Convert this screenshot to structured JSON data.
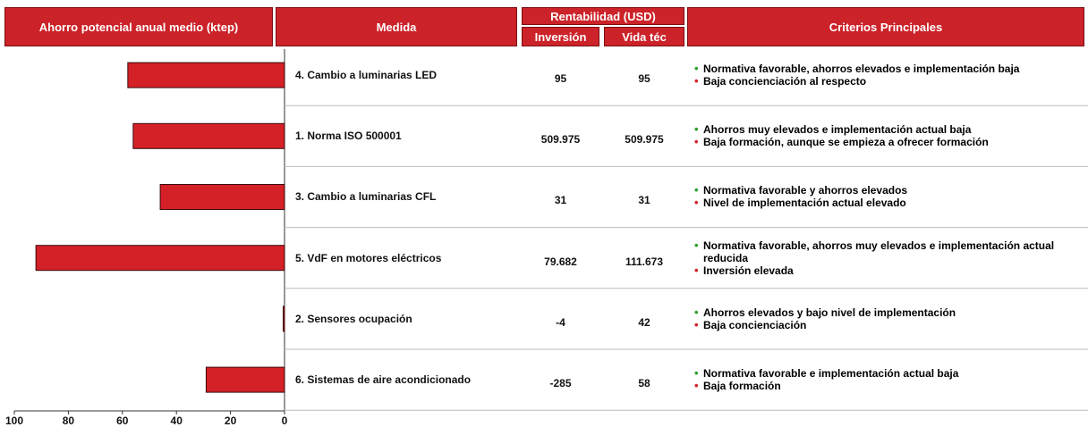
{
  "header": {
    "chart": "Ahorro potencial anual medio (ktep)",
    "measure": "Medida",
    "profitability": "Rentabilidad (USD)",
    "investment": "Inversión",
    "lifetime": "Vida téc",
    "criteria": "Criterios Principales"
  },
  "chart_data": {
    "type": "bar",
    "orientation": "horizontal",
    "color": "#d42027",
    "categories": [
      "4. Cambio a luminarias LED",
      "1. Norma ISO 500001",
      "3. Cambio a luminarias CFL",
      "5. VdF en motores eléctricos",
      "2. Sensores ocupación",
      "6. Sistemas de aire acondicionado"
    ],
    "values": [
      58,
      56,
      46,
      92,
      0.5,
      29
    ],
    "xlim": [
      100,
      0
    ],
    "xticks": [
      100,
      80,
      60,
      40,
      20,
      0
    ]
  },
  "table": {
    "rows": [
      {
        "investment": "95",
        "lifetime": "95",
        "criteria": [
          {
            "text": "Normativa favorable, ahorros elevados e implementación baja",
            "color": "#2ca02c"
          },
          {
            "text": "Baja concienciación al respecto",
            "color": "#d42027"
          }
        ]
      },
      {
        "investment": "509.975",
        "lifetime": "509.975",
        "criteria": [
          {
            "text": "Ahorros muy elevados e implementación actual baja",
            "color": "#2ca02c"
          },
          {
            "text": "Baja formación, aunque se empieza a ofrecer formación",
            "color": "#d42027"
          }
        ]
      },
      {
        "investment": "31",
        "lifetime": "31",
        "criteria": [
          {
            "text": "Normativa favorable y ahorros elevados",
            "color": "#2ca02c"
          },
          {
            "text": "Nivel de implementación actual elevado",
            "color": "#d42027"
          }
        ]
      },
      {
        "investment": "79.682",
        "lifetime": "111.673",
        "criteria": [
          {
            "text": "Normativa favorable, ahorros muy elevados e implementación actual reducida",
            "color": "#2ca02c"
          },
          {
            "text": "Inversión elevada",
            "color": "#d42027"
          }
        ]
      },
      {
        "investment": "-4",
        "lifetime": "42",
        "criteria": [
          {
            "text": "Ahorros elevados y bajo nivel de implementación",
            "color": "#2ca02c"
          },
          {
            "text": "Baja concienciación",
            "color": "#d42027"
          }
        ]
      },
      {
        "investment": "-285",
        "lifetime": "58",
        "criteria": [
          {
            "text": "Normativa favorable e implementación actual baja",
            "color": "#2ca02c"
          },
          {
            "text": "Baja formación",
            "color": "#d42027"
          }
        ]
      }
    ]
  }
}
